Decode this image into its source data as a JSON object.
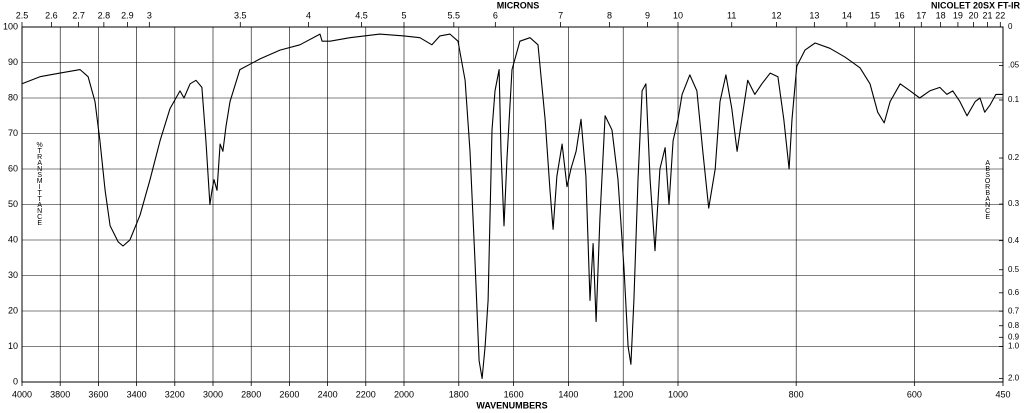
{
  "chart_data": {
    "type": "line",
    "title": "MICRONS",
    "subtitle": "NICOLET 20SX FT-IR",
    "x_label": "WAVENUMBERS",
    "y_label": "%TRANSMITTANCE",
    "y2_label": "ABSORBANCE",
    "color": "#000000",
    "grid": true,
    "xscale": "piecewise",
    "xbreaks": [
      2000,
      1000
    ],
    "xlim": [
      4000,
      450
    ],
    "xticks": [
      4000,
      3800,
      3600,
      3400,
      3200,
      3000,
      2800,
      2600,
      2400,
      2200,
      2000,
      1800,
      1600,
      1400,
      1200,
      1000,
      800,
      600,
      450
    ],
    "x2ticks": [
      2.5,
      2.6,
      2.7,
      2.8,
      2.9,
      3,
      3.5,
      4,
      4.5,
      5,
      5.5,
      6,
      7,
      8,
      9,
      10,
      11,
      12,
      13,
      14,
      15,
      16,
      17,
      18,
      19,
      20,
      21,
      22
    ],
    "ylim": [
      0,
      100
    ],
    "yticks": [
      0,
      10,
      20,
      30,
      40,
      50,
      60,
      70,
      80,
      90,
      100
    ],
    "y2ticks": [
      0,
      {
        "value": 0.05,
        "label": ".05"
      },
      0.1,
      0.2,
      0.3,
      0.4,
      0.5,
      0.6,
      0.7,
      0.8,
      0.9,
      {
        "value": 1,
        "label": "1.0"
      },
      {
        "value": 2,
        "label": "2.0"
      }
    ],
    "x": [
      4000,
      3906,
      3801,
      3696,
      3654,
      3618,
      3592,
      3565,
      3539,
      3497,
      3471,
      3435,
      3382,
      3330,
      3277,
      3225,
      3173,
      3152,
      3120,
      3089,
      3058,
      3037,
      3016,
      3005,
      2995,
      2979,
      2963,
      2948,
      2932,
      2911,
      2859,
      2754,
      2649,
      2545,
      2440,
      2429,
      2387,
      2283,
      2126,
      2000,
      1942,
      1898,
      1869,
      1832,
      1803,
      1777,
      1759,
      1741,
      1726,
      1715,
      1704,
      1693,
      1679,
      1668,
      1653,
      1646,
      1635,
      1624,
      1606,
      1577,
      1540,
      1511,
      1485,
      1467,
      1456,
      1442,
      1423,
      1405,
      1391,
      1372,
      1354,
      1336,
      1321,
      1310,
      1299,
      1285,
      1266,
      1241,
      1219,
      1197,
      1182,
      1172,
      1161,
      1146,
      1131,
      1117,
      1102,
      1084,
      1066,
      1047,
      1033,
      1018,
      1000,
      993,
      980,
      968,
      958,
      948,
      937,
      929,
      919,
      909,
      900,
      892,
      882,
      870,
      858,
      844,
      831,
      821,
      812,
      807,
      799,
      785,
      768,
      743,
      717,
      692,
      675,
      662,
      651,
      641,
      624,
      607,
      591,
      574,
      557,
      545,
      535,
      523,
      511,
      497,
      489,
      481,
      472,
      462,
      450
    ],
    "values": [
      84,
      86,
      87,
      88,
      86,
      79,
      68,
      54,
      44,
      39.5,
      38.3,
      40,
      47,
      57,
      68,
      77,
      82,
      80,
      84,
      85,
      83,
      68,
      50,
      54,
      57,
      54,
      67,
      65,
      72,
      79,
      88,
      91,
      93.5,
      95,
      98,
      96,
      96,
      97,
      98,
      97.5,
      97,
      95,
      97.5,
      98,
      96,
      85,
      65,
      34,
      6,
      1,
      10,
      23,
      71,
      82,
      88,
      65,
      44,
      63,
      88,
      96,
      97,
      95,
      74,
      54,
      43,
      58,
      67,
      55,
      60,
      65,
      74,
      58,
      23,
      39,
      17,
      46,
      75,
      71,
      57,
      32,
      10,
      5,
      23,
      57,
      82,
      84,
      57,
      37,
      60,
      66,
      50,
      68,
      74,
      81,
      86.5,
      82,
      65,
      49,
      60,
      79,
      86.5,
      77,
      65,
      74,
      85,
      81,
      84,
      87,
      86,
      74,
      60,
      74,
      89,
      93.5,
      95.5,
      94,
      91.5,
      88.5,
      84,
      76,
      73,
      79,
      84,
      82,
      80,
      82,
      83,
      81,
      82,
      79,
      75,
      79,
      80,
      76,
      78,
      81,
      81
    ]
  }
}
